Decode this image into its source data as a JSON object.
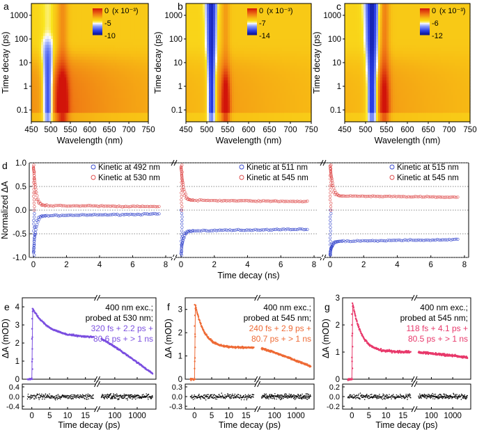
{
  "chart_data": [
    {
      "panel": "a",
      "type": "heatmap",
      "title": "",
      "xlabel": "Wavelength (nm)",
      "ylabel": "Time decay (ps)",
      "xticks": [
        "450",
        "500",
        "550",
        "600",
        "650",
        "700",
        "750"
      ],
      "yticks": [
        "0.1",
        "1",
        "10",
        "100",
        "1000"
      ],
      "colorbar": {
        "unit": "(x 10⁻³)",
        "labels": [
          "0",
          "-5",
          "-10"
        ],
        "min": -10,
        "max": 0
      },
      "bleach_center_nm": 492,
      "absorption_center_nm": 530
    },
    {
      "panel": "b",
      "type": "heatmap",
      "xlabel": "Wavelength (nm)",
      "ylabel": "Time decay (ps)",
      "xticks": [
        "450",
        "500",
        "550",
        "600",
        "650",
        "700",
        "750"
      ],
      "yticks": [
        "0.1",
        "1",
        "10",
        "100",
        "1000"
      ],
      "colorbar": {
        "unit": "(x 10⁻³)",
        "labels": [
          "0",
          "-7",
          "-14"
        ],
        "min": -14,
        "max": 0
      },
      "bleach_center_nm": 511,
      "absorption_center_nm": 545
    },
    {
      "panel": "c",
      "type": "heatmap",
      "xlabel": "Wavelength (nm)",
      "ylabel": "Time decay (ps)",
      "xticks": [
        "450",
        "500",
        "550",
        "600",
        "650",
        "700",
        "750"
      ],
      "yticks": [
        "0.1",
        "1",
        "10",
        "100",
        "1000"
      ],
      "colorbar": {
        "unit": "(x 10⁻³)",
        "labels": [
          "0",
          "-6",
          "-12"
        ],
        "min": -12,
        "max": 0
      },
      "bleach_center_nm": 515,
      "absorption_center_nm": 545
    },
    {
      "panel": "d",
      "type": "scatter",
      "xlabel": "Time decay (ns)",
      "ylabel": "Normalized ΔA",
      "ylim": [
        -1.0,
        1.0
      ],
      "xlim": [
        0,
        8
      ],
      "yticks": [
        "1.0",
        "0.5",
        "0.0",
        "-0.5",
        "-1.0"
      ],
      "xticks": [
        "0",
        "2",
        "4",
        "6",
        "8"
      ],
      "reference_lines": [
        1.0,
        0.5,
        0.0,
        -0.5,
        -1.0
      ],
      "subpanels": [
        {
          "series": [
            {
              "name": "Kinetic at 492 nm",
              "color": "#3344cc",
              "sign": -1,
              "plateau": 0.12,
              "fast": 0.55
            },
            {
              "name": "Kinetic at 530 nm",
              "color": "#dd4444",
              "sign": 1,
              "plateau": 0.1,
              "fast": 0.62
            }
          ]
        },
        {
          "series": [
            {
              "name": "Kinetic at 511 nm",
              "color": "#3344cc",
              "sign": -1,
              "plateau": 0.44,
              "fast": 0.3
            },
            {
              "name": "Kinetic at 545 nm",
              "color": "#dd4444",
              "sign": 1,
              "plateau": 0.21,
              "fast": 0.52
            }
          ]
        },
        {
          "series": [
            {
              "name": "Kinetic at 515 nm",
              "color": "#3344cc",
              "sign": -1,
              "plateau": 0.66,
              "fast": 0.16
            },
            {
              "name": "Kinetic at 545 nm",
              "color": "#dd4444",
              "sign": 1,
              "plateau": 0.3,
              "fast": 0.5
            }
          ]
        }
      ]
    },
    {
      "panel": "e",
      "type": "scatter",
      "xlabel": "Time decay (ps)",
      "ylabel": "ΔA (mOD)",
      "ylim": [
        0,
        4.5
      ],
      "yticks": [
        "0",
        "1",
        "2",
        "3",
        "4"
      ],
      "xticks": [
        "0",
        "5",
        "10",
        "15",
        "100",
        "1000"
      ],
      "residual_yticks": [
        "0.4",
        "0.0",
        "-0.4"
      ],
      "color": "#7b4fe0",
      "annotation": [
        "400 nm exc.;",
        "probed at 530 nm;"
      ],
      "fit_text": [
        "320 fs + 2.2 ps +",
        "80.6 ps + > 1 ns"
      ],
      "peak": 3.9,
      "mid": 2.3,
      "end": 0.3
    },
    {
      "panel": "f",
      "type": "scatter",
      "xlabel": "Time decay (ps)",
      "ylabel": "ΔA (mOD)",
      "ylim": [
        0,
        3.5
      ],
      "yticks": [
        "0",
        "1",
        "2",
        "3"
      ],
      "xticks": [
        "0",
        "5",
        "10",
        "15",
        "100",
        "1000"
      ],
      "residual_yticks": [
        "0.3",
        "0.0",
        "-0.3"
      ],
      "color": "#ee6a35",
      "annotation": [
        "400 nm exc.;",
        "probed at 545 nm;"
      ],
      "fit_text": [
        "240 fs + 2.9 ps +",
        "80.7 ps + > 1 ns"
      ],
      "peak": 3.2,
      "mid": 1.35,
      "end": 0.55
    },
    {
      "panel": "g",
      "type": "scatter",
      "xlabel": "Time decay (ps)",
      "ylabel": "ΔA (mOD)",
      "ylim": [
        0,
        3
      ],
      "yticks": [
        "0",
        "1",
        "2",
        "3"
      ],
      "xticks": [
        "0",
        "5",
        "10",
        "15",
        "100",
        "1000"
      ],
      "residual_yticks": [
        "0.2",
        "0.0",
        "-0.2"
      ],
      "color": "#e8396b",
      "annotation": [
        "400 nm exc.;",
        "probed at 545 nm;"
      ],
      "fit_text": [
        "118 fs + 4.1 ps +",
        "80.5 ps + > 1 ns"
      ],
      "peak": 2.8,
      "mid": 1.0,
      "end": 0.8
    }
  ]
}
